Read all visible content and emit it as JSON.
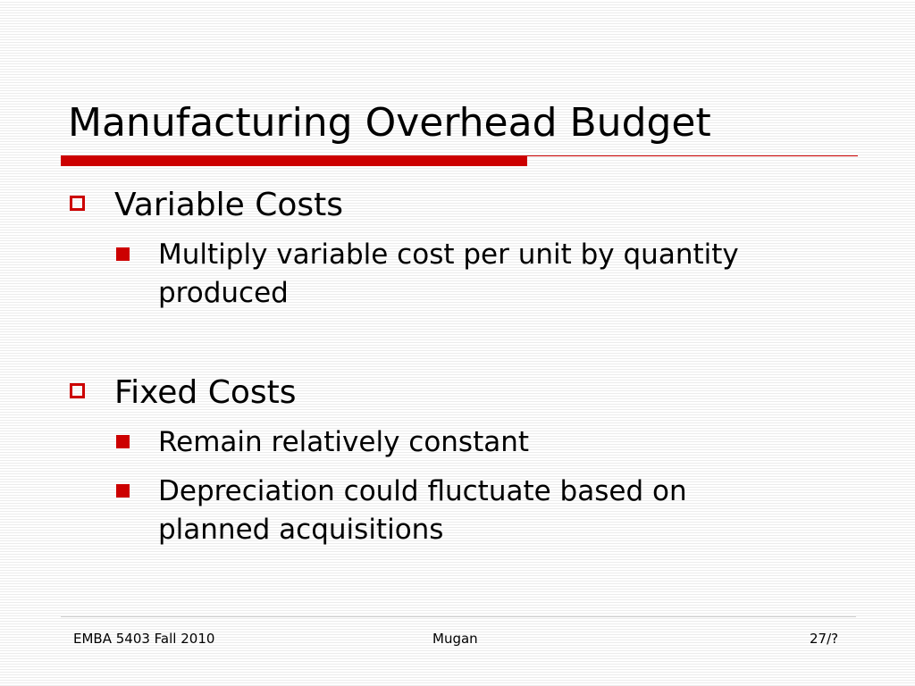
{
  "slide": {
    "title": "Manufacturing Overhead Budget",
    "bullets": [
      {
        "label": "Variable Costs",
        "marker_icon": "hollow-square",
        "sub": [
          {
            "text": "Multiply variable cost per unit by quantity produced",
            "marker_icon": "filled-square"
          }
        ]
      },
      {
        "label": "Fixed Costs",
        "marker_icon": "hollow-square",
        "sub": [
          {
            "text": "Remain relatively constant",
            "marker_icon": "filled-square"
          },
          {
            "text": "Depreciation could fluctuate based on planned acquisitions",
            "marker_icon": "filled-square"
          }
        ]
      }
    ]
  },
  "footer": {
    "left": "EMBA 5403 Fall 2010",
    "center": "Mugan",
    "right": "27/?"
  },
  "colors": {
    "accent": "#cc0000",
    "text": "#000000",
    "background_stripe": "#ececec"
  }
}
